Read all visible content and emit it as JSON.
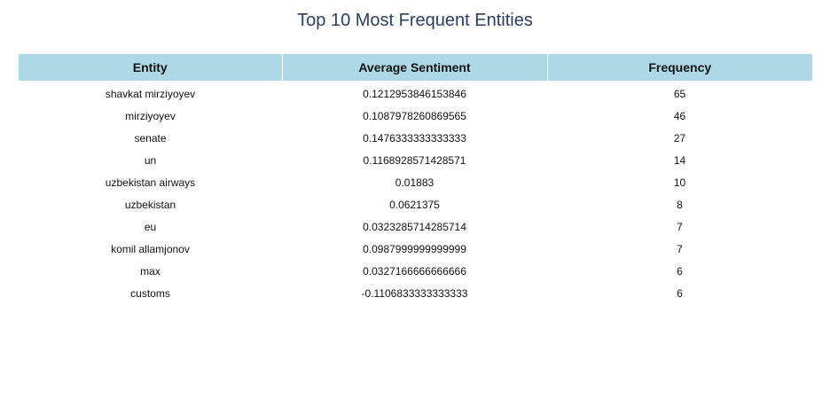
{
  "chart_data": {
    "type": "table",
    "title": "Top 10 Most Frequent Entities",
    "columns": [
      "Entity",
      "Average Sentiment",
      "Frequency"
    ],
    "rows": [
      [
        "shavkat mirziyoyev",
        "0.1212953846153846",
        "65"
      ],
      [
        "mirziyoyev",
        "0.1087978260869565",
        "46"
      ],
      [
        "senate",
        "0.1476333333333333",
        "27"
      ],
      [
        "un",
        "0.1168928571428571",
        "14"
      ],
      [
        "uzbekistan airways",
        "0.01883",
        "10"
      ],
      [
        "uzbekistan",
        "0.0621375",
        "8"
      ],
      [
        "eu",
        "0.0323285714285714",
        "7"
      ],
      [
        "komil allamjonov",
        "0.0987999999999999",
        "7"
      ],
      [
        "max",
        "0.0327166666666666",
        "6"
      ],
      [
        "customs",
        "-0.1106833333333333",
        "6"
      ]
    ],
    "header_color": "#add8e6",
    "title_color": "#2a3f5f"
  }
}
